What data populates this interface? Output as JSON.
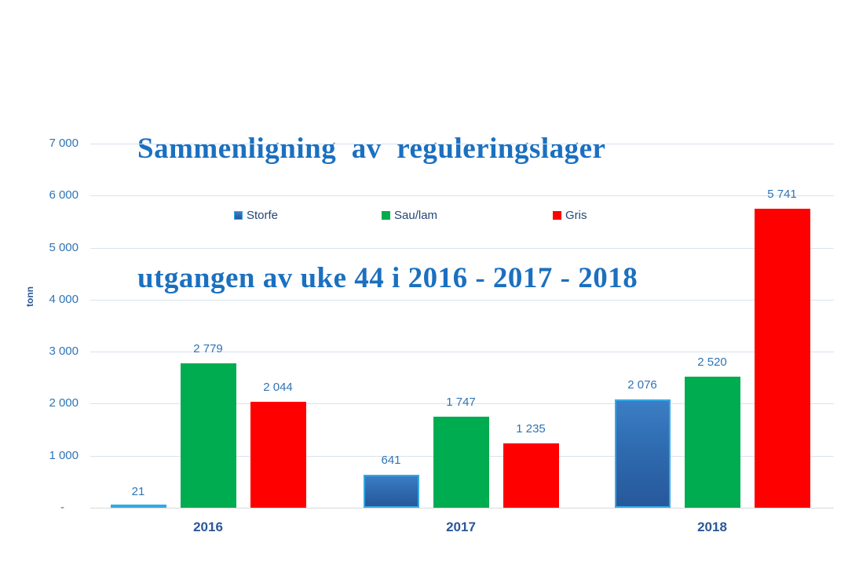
{
  "title": {
    "line1": "Sammenligning  av  reguleringslager",
    "line2": "utgangen av uke 44 i 2016 - 2017 - 2018"
  },
  "colors": {
    "title-color": "#1B70C0",
    "label-color": "#2E74B5",
    "category-color": "#2B5797",
    "legend-text-color": "#264677",
    "grid-color": "#D9E2F0",
    "baseline-color": "#D9D9D9",
    "storfe-border": "#33A9E6",
    "storfe-fill": "#2F6BB0",
    "saulam-color": "#00AC50",
    "gris-color": "#FF0000"
  },
  "chart_data": {
    "type": "bar",
    "title": "Sammenligning av reguleringslager utgangen av uke 44 i 2016 - 2017 - 2018",
    "categories": [
      "2016",
      "2017",
      "2018"
    ],
    "series": [
      {
        "name": "Storfe",
        "color": "#2F6BB0",
        "values": [
          21,
          641,
          2076
        ],
        "labels": [
          "21",
          "641",
          "2 076"
        ]
      },
      {
        "name": "Sau/lam",
        "color": "#00AC50",
        "values": [
          2779,
          1747,
          2520
        ],
        "labels": [
          "2 779",
          "1 747",
          "2 520"
        ]
      },
      {
        "name": "Gris",
        "color": "#FF0000",
        "values": [
          2044,
          1235,
          5741
        ],
        "labels": [
          "2 044",
          "1 235",
          "5 741"
        ]
      }
    ],
    "xlabel": "",
    "ylabel": "tonn",
    "ylim": [
      0,
      7000
    ],
    "ytick_step": 1000,
    "yticks": [
      "7 000",
      "6 000",
      "5 000",
      "4 000",
      "3 000",
      "2 000",
      "1 000",
      "-"
    ],
    "grid": true,
    "legend_position": "top-inside"
  }
}
